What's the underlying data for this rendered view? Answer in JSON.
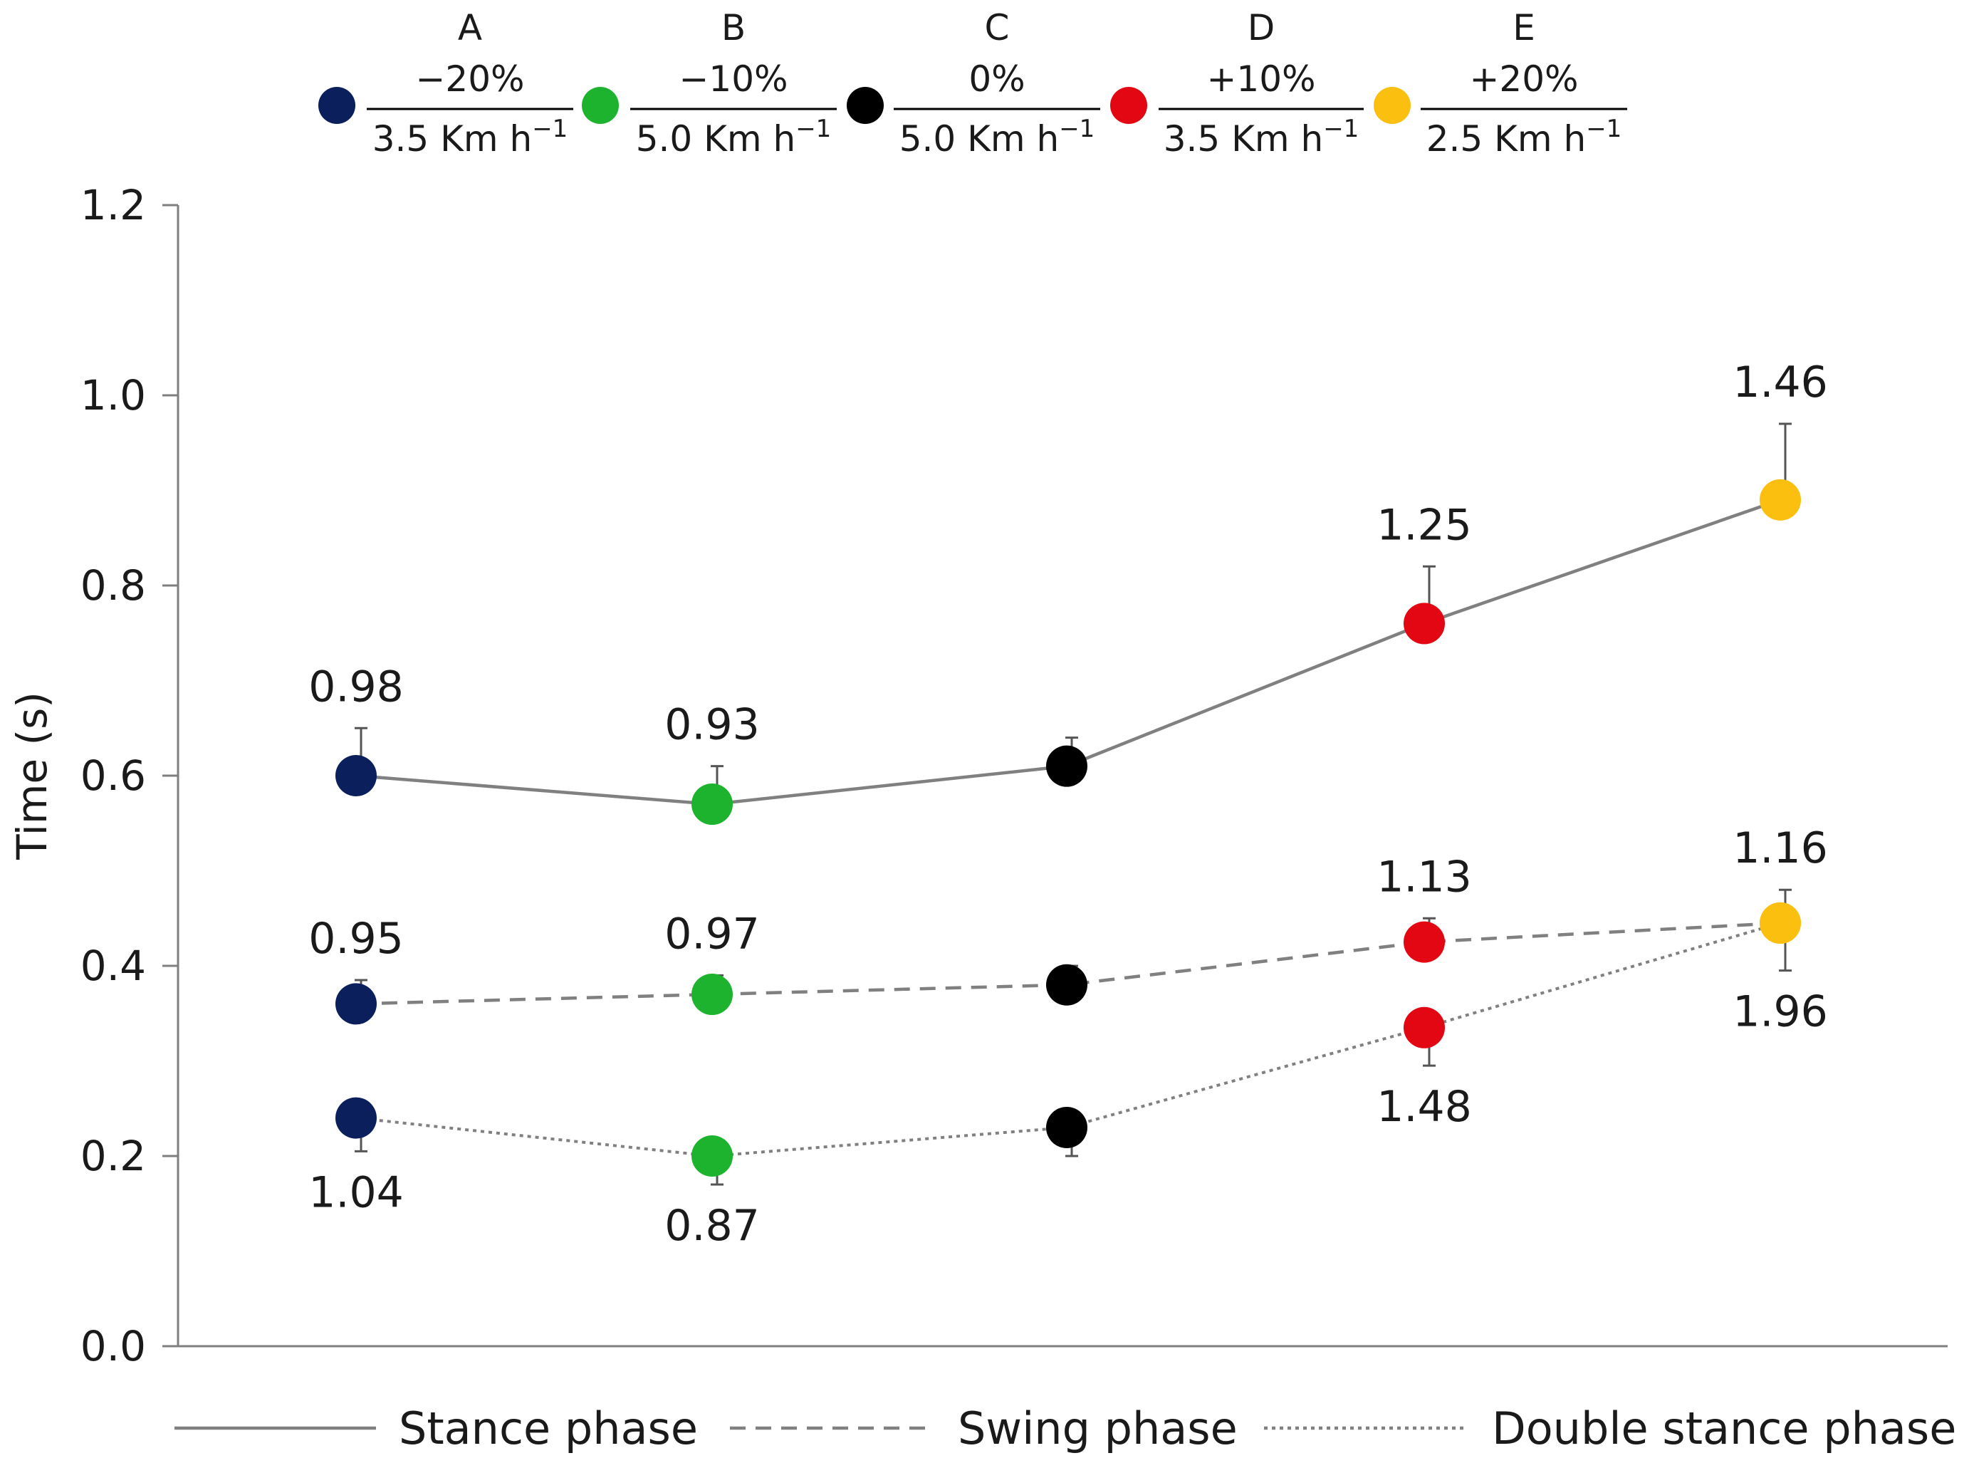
{
  "chart_data": {
    "type": "line",
    "ylabel": "Time (s)",
    "ylim": [
      0,
      1.2
    ],
    "yticks": [
      "0.0",
      "0.2",
      "0.4",
      "0.6",
      "0.8",
      "1.0",
      "1.2"
    ],
    "grid": false,
    "conditions": [
      {
        "letter": "A",
        "slope": "−20%",
        "speed": "3.5 Km h",
        "exp": "−1",
        "color": "#0b1f5c"
      },
      {
        "letter": "B",
        "slope": "−10%",
        "speed": "5.0 Km h",
        "exp": "−1",
        "color": "#1db32e"
      },
      {
        "letter": "C",
        "slope": "0%",
        "speed": "5.0 Km h",
        "exp": "−1",
        "color": "#000000"
      },
      {
        "letter": "D",
        "slope": "+10%",
        "speed": "3.5 Km h",
        "exp": "−1",
        "color": "#e30613"
      },
      {
        "letter": "E",
        "slope": "+20%",
        "speed": "2.5 Km h",
        "exp": "−1",
        "color": "#fbbf0f"
      }
    ],
    "series": [
      {
        "name": "Stance phase",
        "line_style": "solid",
        "values": [
          0.6,
          0.57,
          0.61,
          0.76,
          0.89
        ],
        "error_up": [
          0.65,
          0.61,
          0.64,
          0.82,
          0.97
        ],
        "labels": [
          "0.98",
          "0.93",
          "",
          "1.25",
          "1.46"
        ],
        "label_position": "above"
      },
      {
        "name": "Swing phase",
        "line_style": "dashed",
        "values": [
          0.36,
          0.37,
          0.38,
          0.425,
          0.445
        ],
        "error_up": [
          0.385,
          0.39,
          0.4,
          0.45,
          0.48
        ],
        "labels": [
          "0.95",
          "0.97",
          "",
          "1.13",
          "1.16"
        ],
        "label_position": "above"
      },
      {
        "name": "Double stance phase",
        "line_style": "dotted",
        "values": [
          0.24,
          0.2,
          0.23,
          0.335,
          0.445
        ],
        "error_down": [
          0.205,
          0.17,
          0.2,
          0.295,
          0.395
        ],
        "labels": [
          "1.04",
          "0.87",
          "",
          "1.48",
          "1.96"
        ],
        "label_position": "below"
      }
    ],
    "legend": {
      "placement": "bottom"
    }
  },
  "colors": {
    "axis": "#7f7f7f",
    "line": "#808080",
    "text": "#1a1a1a"
  }
}
